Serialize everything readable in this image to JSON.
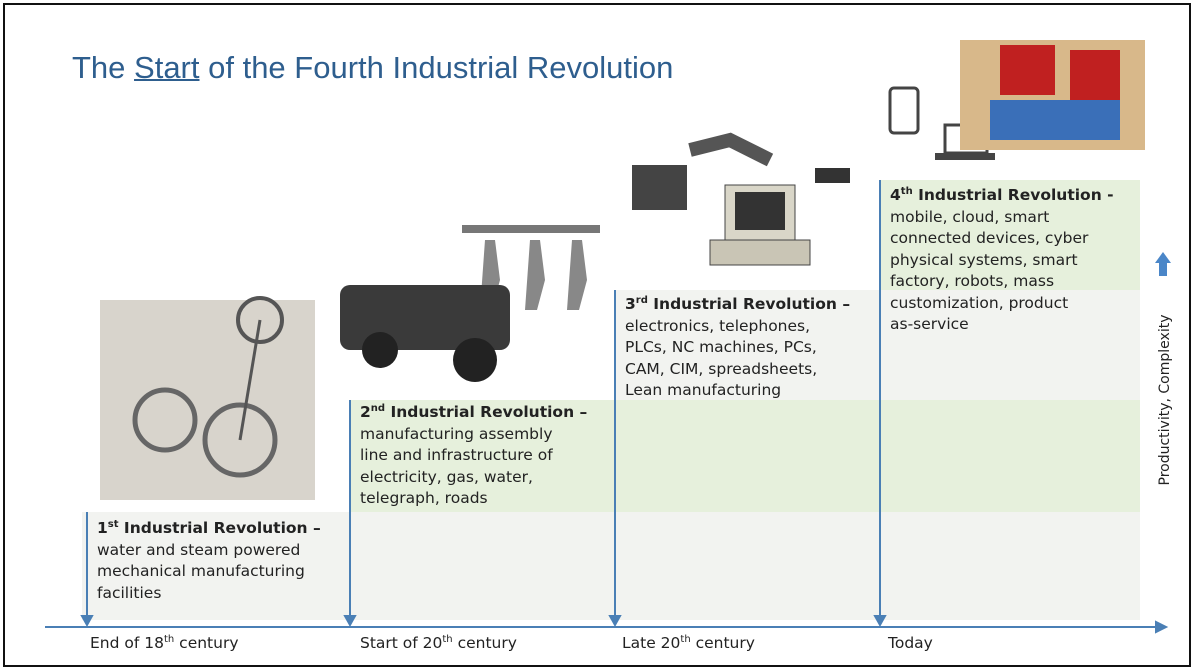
{
  "title": {
    "prefix": "The ",
    "emphasis": "Start",
    "suffix": " of the Fourth Industrial Revolution"
  },
  "stages": [
    {
      "number": "1",
      "ordinal": "st",
      "heading": " Industrial Revolution –",
      "lines": [
        "water and steam powered",
        "mechanical manufacturing",
        "facilities"
      ],
      "time": {
        "prefix": "End of 18",
        "ordinal": "th",
        "suffix": " century"
      }
    },
    {
      "number": "2",
      "ordinal": "nd",
      "heading": " Industrial Revolution –",
      "lines": [
        "manufacturing assembly",
        "line and infrastructure of",
        "electricity, gas, water,",
        "telegraph, roads"
      ],
      "time": {
        "prefix": "Start of 20",
        "ordinal": "th",
        "suffix": " century"
      }
    },
    {
      "number": "3",
      "ordinal": "rd",
      "heading": " Industrial Revolution –",
      "lines": [
        "electronics, telephones,",
        "PLCs, NC machines, PCs,",
        "CAM, CIM, spreadsheets,",
        "Lean manufacturing"
      ],
      "time": {
        "prefix": "Late 20",
        "ordinal": "th",
        "suffix": " century"
      }
    },
    {
      "number": "4",
      "ordinal": "th",
      "heading": " Industrial Revolution -",
      "lines": [
        "mobile, cloud, smart",
        "connected devices, cyber",
        "physical systems, smart",
        "factory, robots, mass",
        "customization, product",
        "as-service"
      ],
      "time": {
        "prefix": "Today",
        "ordinal": "",
        "suffix": ""
      }
    }
  ],
  "axis_label": "Productivity, Complexity"
}
